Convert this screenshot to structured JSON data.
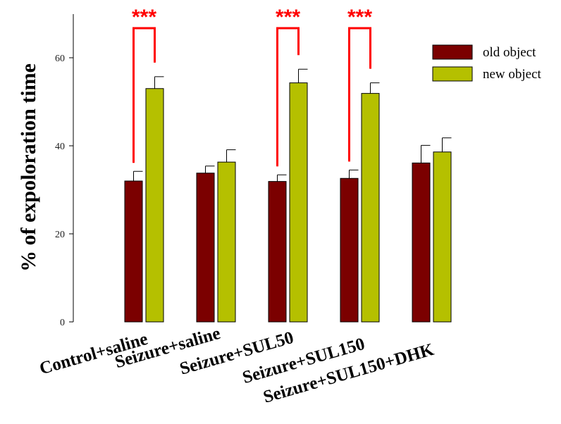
{
  "chart_data": {
    "type": "bar",
    "ylabel": "% of expoloration time",
    "xlabel": "",
    "ylim": [
      0,
      70
    ],
    "yticks": [
      0,
      20,
      40,
      60
    ],
    "categories": [
      "Control+saline",
      "Seizure+saline",
      "Seizure+SUL50",
      "Seizure+SUL150",
      "Seizure+SUL150+DHK"
    ],
    "series": [
      {
        "name": "old object",
        "color": "#7b0000",
        "values": [
          32.0,
          33.8,
          31.9,
          32.6,
          36.1
        ],
        "errors": [
          2.2,
          1.6,
          1.5,
          1.9,
          4.0
        ]
      },
      {
        "name": "new object",
        "color": "#b5c000",
        "values": [
          53.0,
          36.3,
          54.3,
          51.9,
          38.6
        ],
        "errors": [
          2.7,
          2.8,
          3.1,
          2.4,
          3.2
        ]
      }
    ],
    "legend_position": "top-right",
    "significance": [
      {
        "category_index": 0,
        "label": "***"
      },
      {
        "category_index": 2,
        "label": "***"
      },
      {
        "category_index": 3,
        "label": "***"
      }
    ],
    "significance_color": "#ff0000"
  }
}
